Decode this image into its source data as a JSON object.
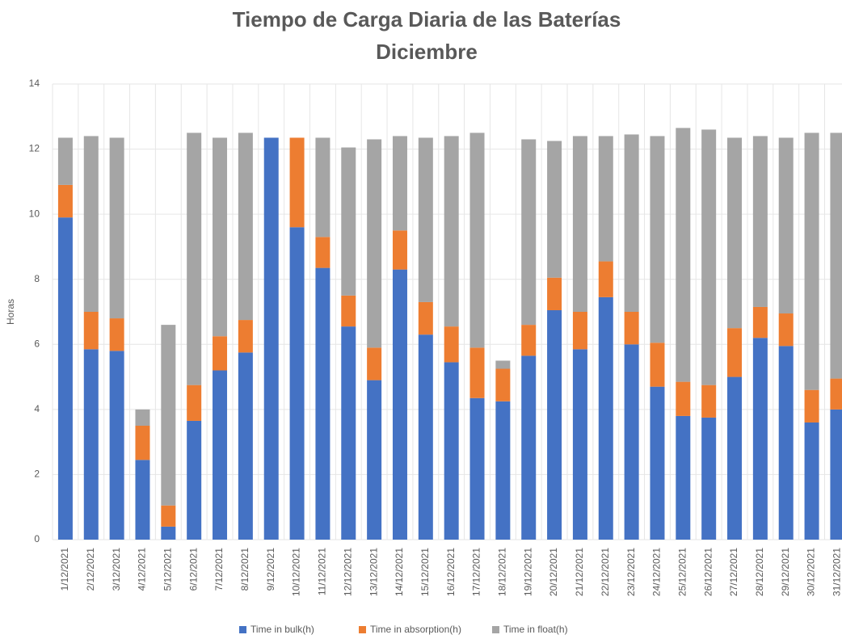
{
  "chart_data": {
    "type": "stacked_bar",
    "title": "Tiempo de Carga Diaria de las Baterías",
    "subtitle": "Diciembre",
    "y_label": "Horas",
    "categories": [
      "1/12/2021",
      "2/12/2021",
      "3/12/2021",
      "4/12/2021",
      "5/12/2021",
      "6/12/2021",
      "7/12/2021",
      "8/12/2021",
      "9/12/2021",
      "10/12/2021",
      "11/12/2021",
      "12/12/2021",
      "13/12/2021",
      "14/12/2021",
      "15/12/2021",
      "16/12/2021",
      "17/12/2021",
      "18/12/2021",
      "19/12/2021",
      "20/12/2021",
      "21/12/2021",
      "22/12/2021",
      "23/12/2021",
      "24/12/2021",
      "25/12/2021",
      "26/12/2021",
      "27/12/2021",
      "28/12/2021",
      "29/12/2021",
      "30/12/2021",
      "31/12/2021"
    ],
    "series": [
      {
        "name": "Time in bulk(h)",
        "color": "#4472c4",
        "values": [
          9.9,
          5.85,
          5.8,
          2.45,
          0.4,
          3.65,
          5.2,
          5.75,
          12.35,
          9.6,
          8.35,
          6.55,
          4.9,
          8.3,
          6.3,
          5.45,
          4.35,
          4.25,
          5.65,
          7.05,
          5.85,
          7.45,
          6.0,
          4.7,
          3.8,
          3.75,
          5.0,
          6.2,
          5.95,
          3.6,
          4.0
        ]
      },
      {
        "name": "Time in absorption(h)",
        "color": "#ed7d31",
        "values": [
          1.0,
          1.15,
          1.0,
          1.05,
          0.65,
          1.1,
          1.05,
          1.0,
          0,
          2.75,
          0.95,
          0.95,
          1.0,
          1.2,
          1.0,
          1.1,
          1.55,
          1.0,
          0.95,
          1.0,
          1.15,
          1.1,
          1.0,
          1.35,
          1.05,
          1.0,
          1.5,
          0.95,
          1.0,
          1.0,
          0.95
        ]
      },
      {
        "name": "Time in float(h)",
        "color": "#a5a5a5",
        "values": [
          1.45,
          5.4,
          5.55,
          0.5,
          5.55,
          7.75,
          6.1,
          5.75,
          0,
          0,
          3.05,
          4.55,
          6.4,
          2.9,
          5.05,
          5.85,
          6.6,
          0.25,
          5.7,
          4.2,
          5.4,
          3.85,
          5.45,
          6.35,
          7.8,
          7.85,
          5.85,
          5.25,
          5.4,
          7.9,
          7.55
        ]
      }
    ],
    "ylim": [
      0,
      14
    ],
    "yticks": [
      0,
      2,
      4,
      6,
      8,
      10,
      12,
      14
    ],
    "grid": true,
    "legend": "bottom"
  }
}
